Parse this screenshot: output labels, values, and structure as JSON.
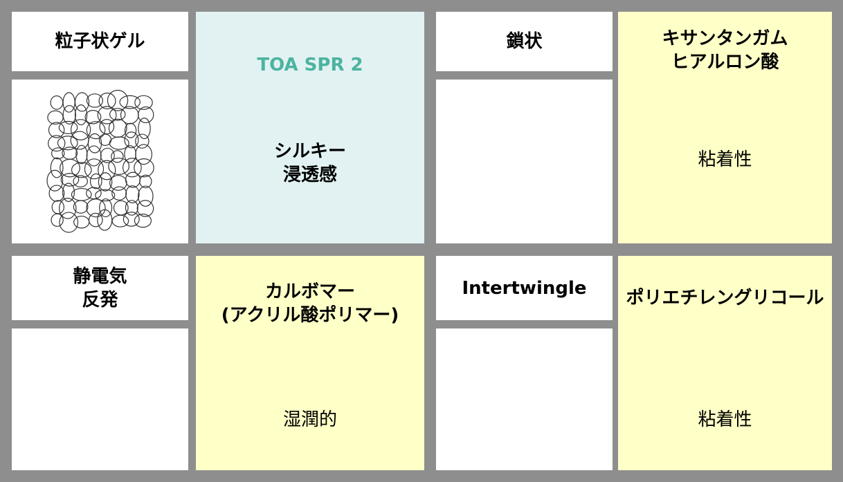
{
  "panels": [
    {
      "label": [
        "粒子状ゲル"
      ],
      "product": {
        "name": [
          "TOA SPR 2"
        ],
        "feature": [
          "シルキー",
          "浸透感"
        ]
      }
    },
    {
      "label": [
        "鎖状"
      ],
      "product": {
        "name": [
          "キサンタンガム",
          "ヒアルロン酸"
        ],
        "feature": [
          "粘着性"
        ]
      }
    },
    {
      "label": [
        "静電気",
        "反発"
      ],
      "product": {
        "name": [
          "カルボマー",
          "(アクリル酸ポリマー)"
        ],
        "feature": [
          "湿潤的"
        ]
      }
    },
    {
      "label": [
        "Intertwingle"
      ],
      "product": {
        "name": [
          "ポリエチレングリコール"
        ],
        "feature": [
          "粘着性"
        ]
      }
    }
  ]
}
